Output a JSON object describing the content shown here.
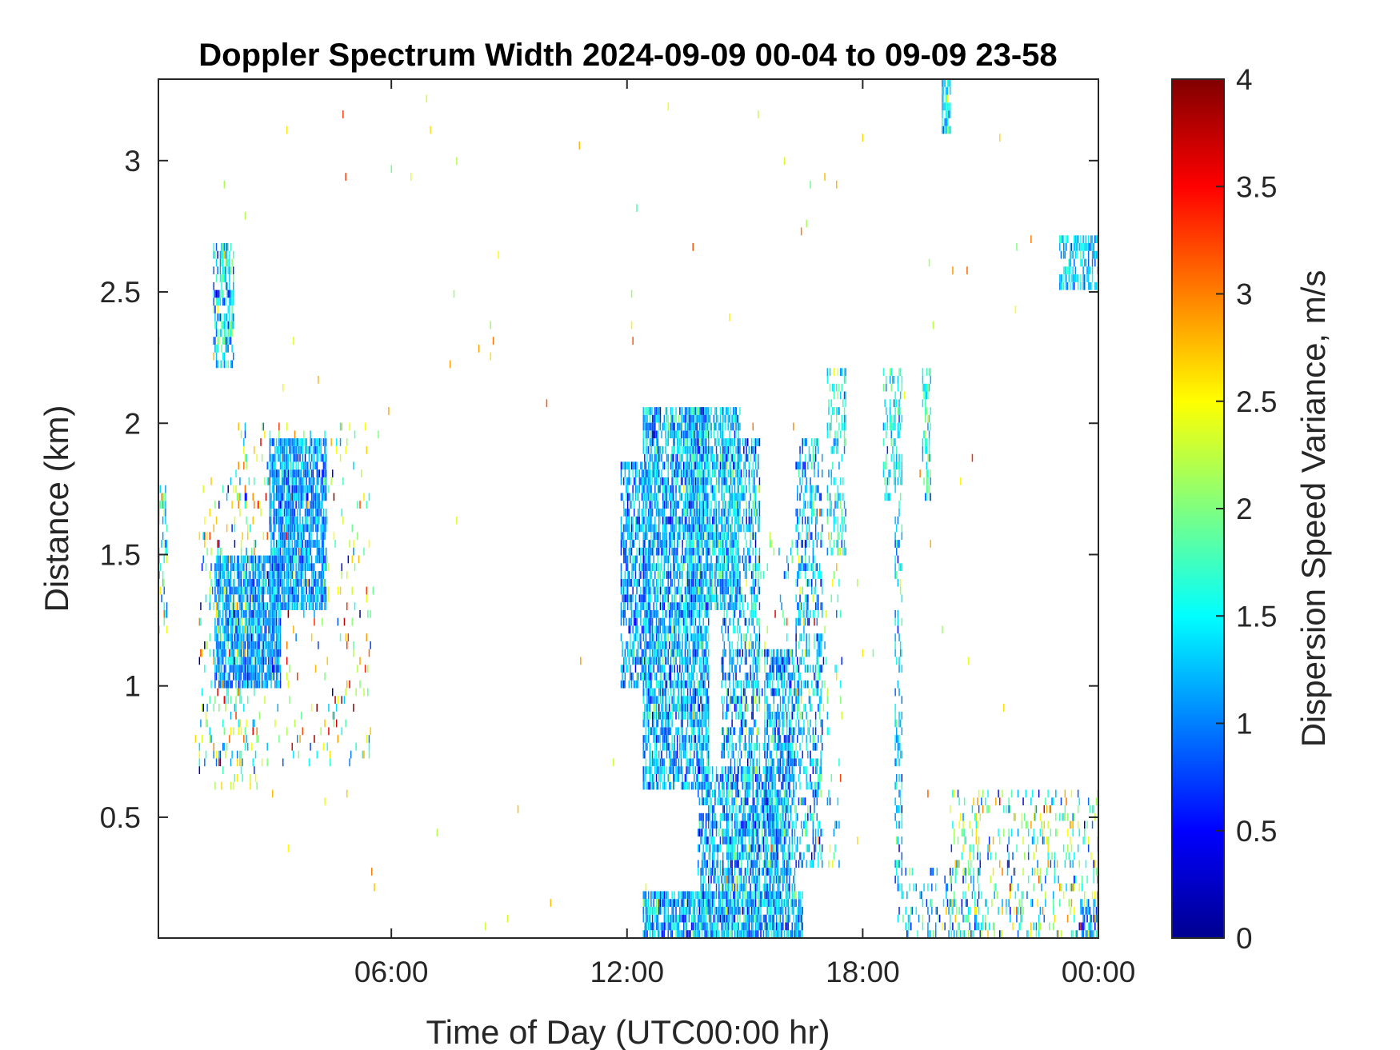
{
  "chart_data": {
    "type": "heatmap",
    "title": "Doppler Spectrum Width 2024-09-09 00-04 to 09-09 23-58",
    "xlabel": "Time of Day (UTC00:00 hr)",
    "ylabel": "Distance (km)",
    "xlim_hours": [
      0.07,
      24.0
    ],
    "ylim": [
      0.04,
      3.31
    ],
    "x_ticks": [
      {
        "hour": 6,
        "label": "06:00"
      },
      {
        "hour": 12,
        "label": "12:00"
      },
      {
        "hour": 18,
        "label": "18:00"
      },
      {
        "hour": 24,
        "label": "00:00"
      }
    ],
    "y_ticks": [
      {
        "value": 0.5,
        "label": "0.5"
      },
      {
        "value": 1,
        "label": "1"
      },
      {
        "value": 1.5,
        "label": "1.5"
      },
      {
        "value": 2,
        "label": "2"
      },
      {
        "value": 2.5,
        "label": "2.5"
      },
      {
        "value": 3,
        "label": "3"
      }
    ],
    "colorbar": {
      "label": "Dispersion Speed Variance, m/s",
      "colormap": "jet",
      "range": [
        0,
        4
      ],
      "ticks": [
        {
          "value": 0,
          "label": "0"
        },
        {
          "value": 0.5,
          "label": "0.5"
        },
        {
          "value": 1,
          "label": "1"
        },
        {
          "value": 1.5,
          "label": "1.5"
        },
        {
          "value": 2,
          "label": "2"
        },
        {
          "value": 2.5,
          "label": "2.5"
        },
        {
          "value": 3,
          "label": "3"
        },
        {
          "value": 3.5,
          "label": "3.5"
        },
        {
          "value": 4,
          "label": "4"
        }
      ]
    },
    "grid": false,
    "regions": [
      {
        "t0": 0.0,
        "t1": 0.3,
        "d0": 1.2,
        "d1": 1.75,
        "mean": 1.6,
        "sd": 0.6,
        "density": 0.35
      },
      {
        "t0": 1.45,
        "t1": 2.0,
        "d0": 2.2,
        "d1": 2.7,
        "mean": 1.4,
        "sd": 0.5,
        "density": 0.55
      },
      {
        "t0": 1.1,
        "t1": 2.6,
        "d0": 0.6,
        "d1": 1.8,
        "mean": 1.8,
        "sd": 0.8,
        "density": 0.12
      },
      {
        "t0": 1.5,
        "t1": 3.2,
        "d0": 0.98,
        "d1": 1.5,
        "mean": 1.1,
        "sd": 0.3,
        "density": 0.8
      },
      {
        "t0": 2.9,
        "t1": 4.35,
        "d0": 1.3,
        "d1": 1.95,
        "mean": 1.1,
        "sd": 0.3,
        "density": 0.78
      },
      {
        "t0": 2.0,
        "t1": 5.5,
        "d0": 0.7,
        "d1": 2.0,
        "mean": 2.2,
        "sd": 0.8,
        "density": 0.07
      },
      {
        "t0": 11.85,
        "t1": 12.6,
        "d0": 1.0,
        "d1": 1.85,
        "mean": 1.1,
        "sd": 0.35,
        "density": 0.6
      },
      {
        "t0": 12.4,
        "t1": 14.1,
        "d0": 0.6,
        "d1": 2.05,
        "mean": 1.2,
        "sd": 0.4,
        "density": 0.7
      },
      {
        "t0": 13.5,
        "t1": 14.9,
        "d0": 1.3,
        "d1": 2.05,
        "mean": 1.3,
        "sd": 0.35,
        "density": 0.7
      },
      {
        "t0": 14.4,
        "t1": 15.4,
        "d0": 0.2,
        "d1": 1.95,
        "mean": 1.2,
        "sd": 0.45,
        "density": 0.45
      },
      {
        "t0": 15.5,
        "t1": 16.3,
        "d0": 0.2,
        "d1": 1.15,
        "mean": 1.15,
        "sd": 0.4,
        "density": 0.65
      },
      {
        "t0": 12.4,
        "t1": 16.5,
        "d0": 0.04,
        "d1": 0.22,
        "mean": 1.2,
        "sd": 0.4,
        "density": 0.75
      },
      {
        "t0": 13.8,
        "t1": 15.8,
        "d0": 0.04,
        "d1": 0.7,
        "mean": 1.2,
        "sd": 0.4,
        "density": 0.55
      },
      {
        "t0": 16.3,
        "t1": 17.0,
        "d0": 0.3,
        "d1": 1.95,
        "mean": 1.2,
        "sd": 0.4,
        "density": 0.35
      },
      {
        "t0": 17.1,
        "t1": 17.6,
        "d0": 1.5,
        "d1": 2.2,
        "mean": 1.5,
        "sd": 0.35,
        "density": 0.3
      },
      {
        "t0": 18.5,
        "t1": 19.0,
        "d0": 1.7,
        "d1": 2.2,
        "mean": 1.5,
        "sd": 0.3,
        "density": 0.4
      },
      {
        "t0": 18.8,
        "t1": 19.0,
        "d0": 0.1,
        "d1": 1.7,
        "mean": 1.3,
        "sd": 0.4,
        "density": 0.3
      },
      {
        "t0": 19.5,
        "t1": 19.75,
        "d0": 1.7,
        "d1": 2.2,
        "mean": 1.6,
        "sd": 0.4,
        "density": 0.45
      },
      {
        "t0": 20.0,
        "t1": 20.25,
        "d0": 3.1,
        "d1": 3.31,
        "mean": 1.4,
        "sd": 0.3,
        "density": 0.75
      },
      {
        "t0": 23.0,
        "t1": 24.0,
        "d0": 2.5,
        "d1": 2.72,
        "mean": 1.3,
        "sd": 0.3,
        "density": 0.55
      },
      {
        "t0": 20.2,
        "t1": 24.0,
        "d0": 0.04,
        "d1": 0.6,
        "mean": 1.8,
        "sd": 0.7,
        "density": 0.18
      },
      {
        "t0": 19.0,
        "t1": 21.0,
        "d0": 0.04,
        "d1": 0.3,
        "mean": 1.3,
        "sd": 0.5,
        "density": 0.2
      },
      {
        "t0": 23.5,
        "t1": 24.0,
        "d0": 0.04,
        "d1": 0.2,
        "mean": 1.0,
        "sd": 0.3,
        "density": 0.5
      },
      {
        "t0": 15.0,
        "t1": 17.5,
        "d0": 0.3,
        "d1": 1.6,
        "mean": 1.8,
        "sd": 0.6,
        "density": 0.08
      }
    ],
    "background_noise": {
      "density": 0.0012,
      "mean": 2.6,
      "sd": 0.4
    }
  }
}
